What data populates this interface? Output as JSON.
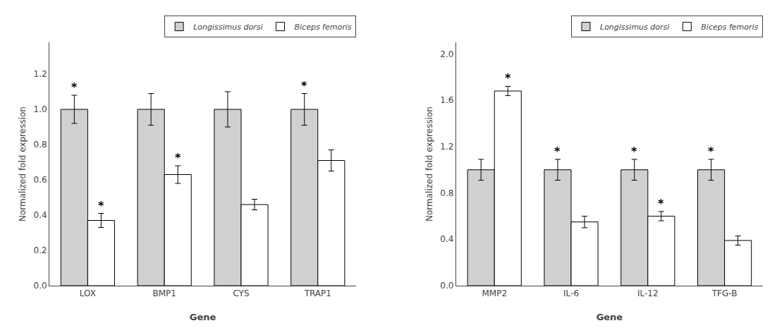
{
  "chart_data": [
    {
      "type": "bar",
      "categories": [
        "LOX",
        "BMP1",
        "CYS",
        "TRAP1"
      ],
      "series": [
        {
          "name": "Longissimus dorsi",
          "color": "#d0d0d0",
          "values": [
            1.0,
            1.0,
            1.0,
            1.0
          ],
          "errors": [
            0.08,
            0.09,
            0.1,
            0.09
          ]
        },
        {
          "name": "Biceps femoris",
          "color": "#ffffff",
          "values": [
            0.37,
            0.63,
            0.46,
            0.71
          ],
          "errors": [
            0.04,
            0.05,
            0.03,
            0.06
          ]
        }
      ],
      "xlabel": "Gene",
      "ylabel": "Normalized fold expression",
      "ylim": [
        0.0,
        1.38
      ],
      "yticks": [
        {
          "value": 0.0,
          "label": "0.0"
        },
        0.2,
        0.4,
        0.6,
        0.8,
        {
          "value": 1.0,
          "label": "1.0"
        },
        1.2
      ],
      "grid": false,
      "legend": "upper right",
      "annotations": [
        {
          "category": "LOX",
          "series": "Longissimus dorsi",
          "text": "*"
        },
        {
          "category": "TRAP1",
          "series": "Longissimus dorsi",
          "text": "*"
        },
        {
          "category": "LOX",
          "series": "Biceps femoris",
          "text": "*"
        },
        {
          "category": "BMP1",
          "series": "Biceps femoris",
          "text": "*"
        }
      ]
    },
    {
      "type": "bar",
      "categories": [
        "MMP2",
        "IL-6",
        "IL-12",
        "TFG-B"
      ],
      "series": [
        {
          "name": "Longissimus dorsi",
          "color": "#d0d0d0",
          "values": [
            1.0,
            1.0,
            1.0,
            1.0
          ],
          "errors": [
            0.09,
            0.09,
            0.09,
            0.09
          ]
        },
        {
          "name": "Biceps femoris",
          "color": "#ffffff",
          "values": [
            1.68,
            0.55,
            0.6,
            0.39
          ],
          "errors": [
            0.04,
            0.05,
            0.04,
            0.04
          ]
        }
      ],
      "xlabel": "Gene",
      "ylabel": "Normalized fold expression",
      "ylim": [
        0.0,
        2.1
      ],
      "yticks": [
        {
          "value": 0.0,
          "label": "0.0"
        },
        0.4,
        0.8,
        1.2,
        1.6,
        {
          "value": 2.0,
          "label": "2.0"
        }
      ],
      "grid": false,
      "legend": "upper right",
      "annotations": [
        {
          "category": "IL-6",
          "series": "Longissimus dorsi",
          "text": "*"
        },
        {
          "category": "IL-12",
          "series": "Longissimus dorsi",
          "text": "*"
        },
        {
          "category": "TFG-B",
          "series": "Longissimus dorsi",
          "text": "*"
        },
        {
          "category": "MMP2",
          "series": "Biceps femoris",
          "text": "*"
        },
        {
          "category": "IL-12",
          "series": "Biceps femoris",
          "text": "*"
        }
      ]
    }
  ]
}
